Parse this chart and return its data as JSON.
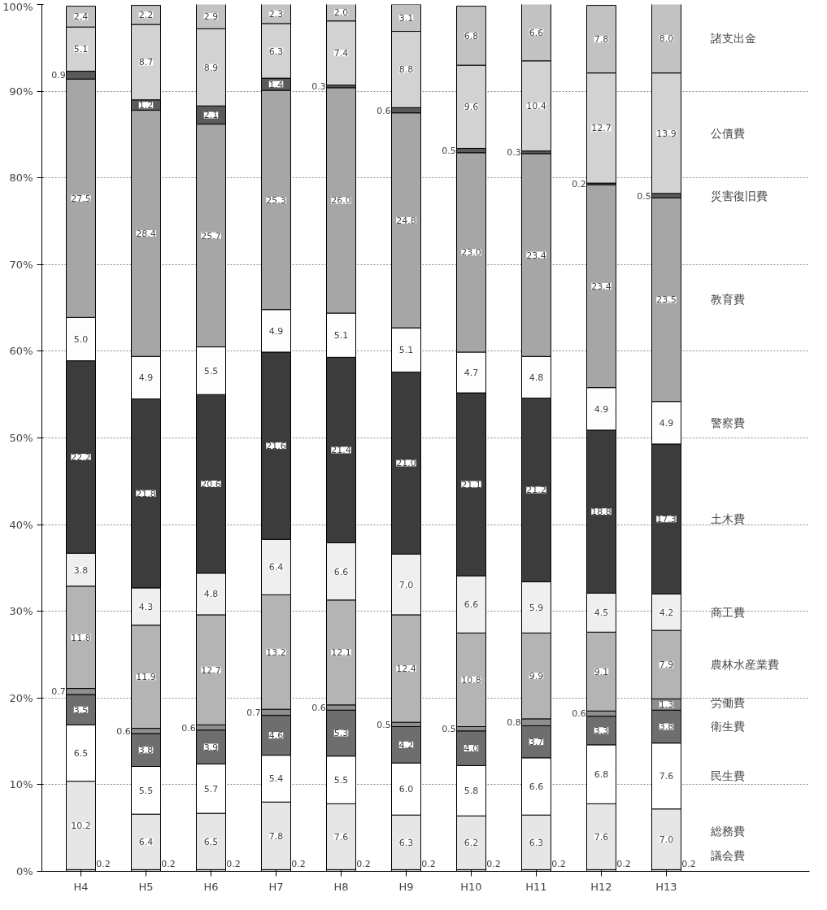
{
  "chart_data": {
    "type": "bar",
    "stacked": true,
    "grid": "y",
    "legend": "right",
    "categories": [
      "H4",
      "H5",
      "H6",
      "H7",
      "H8",
      "H9",
      "H10",
      "H11",
      "H12",
      "H13"
    ],
    "ylim": [
      0,
      100
    ],
    "yticks": [
      {
        "value": 0,
        "label": "0%"
      },
      {
        "value": 10,
        "label": "10%"
      },
      {
        "value": 20,
        "label": "20%"
      },
      {
        "value": 30,
        "label": "30%"
      },
      {
        "value": 40,
        "label": "40%"
      },
      {
        "value": 50,
        "label": "50%"
      },
      {
        "value": 60,
        "label": "60%"
      },
      {
        "value": 70,
        "label": "70%"
      },
      {
        "value": 80,
        "label": "80%"
      },
      {
        "value": 90,
        "label": "90%"
      },
      {
        "value": 100,
        "label": "100%"
      }
    ],
    "series": [
      {
        "name": "議会費",
        "color": "#cccccc",
        "values": [
          0.2,
          0.2,
          0.2,
          0.2,
          0.2,
          0.2,
          0.2,
          0.2,
          0.2,
          0.2
        ],
        "value_labels": [
          "0.2",
          "0.2",
          "0.2",
          "0.2",
          "0.2",
          "0.2",
          "0.2",
          "0.2",
          "0.2",
          "0.2"
        ]
      },
      {
        "name": "総務費",
        "color": "#e6e6e6",
        "values": [
          10.2,
          6.4,
          6.5,
          7.8,
          7.6,
          6.3,
          6.2,
          6.3,
          7.6,
          7.0
        ],
        "value_labels": [
          "10.2",
          "6.4",
          "6.5",
          "7.8",
          "7.6",
          "6.3",
          "6.2",
          "6.3",
          "7.6",
          "7.0"
        ]
      },
      {
        "name": "民生費",
        "color": "#ffffff",
        "values": [
          6.5,
          5.5,
          5.7,
          5.4,
          5.5,
          6.0,
          5.8,
          6.6,
          6.8,
          7.6
        ],
        "value_labels": [
          "6.5",
          "5.5",
          "5.7",
          "5.4",
          "5.5",
          "6.0",
          "5.8",
          "6.6",
          "6.8",
          "7.6"
        ]
      },
      {
        "name": "衛生費",
        "color": "#6e6e6e",
        "values": [
          3.5,
          3.8,
          3.9,
          4.6,
          5.3,
          4.2,
          4.0,
          3.7,
          3.3,
          3.8
        ],
        "value_labels": [
          "3.5",
          "3.8",
          "3.9",
          "4.6",
          "5.3",
          "4.2",
          "4.0",
          "3.7",
          "3.3",
          "3.8"
        ]
      },
      {
        "name": "労働費",
        "color": "#8f8f8f",
        "values": [
          0.7,
          0.6,
          0.6,
          0.7,
          0.6,
          0.5,
          0.5,
          0.8,
          0.6,
          1.3
        ],
        "value_labels": [
          "0.7",
          "0.6",
          "0.6",
          "0.7",
          "0.6",
          "0.5",
          "0.5",
          "0.8",
          "0.6",
          "1.3"
        ]
      },
      {
        "name": "農林水産業費",
        "color": "#b4b4b4",
        "values": [
          11.8,
          11.9,
          12.7,
          13.2,
          12.1,
          12.4,
          10.8,
          9.9,
          9.1,
          7.9
        ],
        "value_labels": [
          "11.8",
          "11.9",
          "12.7",
          "13.2",
          "12.1",
          "12.4",
          "10.8",
          "9.9",
          "9.1",
          "7.9"
        ]
      },
      {
        "name": "商工費",
        "color": "#efefef",
        "values": [
          3.8,
          4.3,
          4.8,
          6.4,
          6.6,
          7.0,
          6.6,
          5.9,
          4.5,
          4.2
        ],
        "value_labels": [
          "3.8",
          "4.3",
          "4.8",
          "6.4",
          "6.6",
          "7.0",
          "6.6",
          "5.9",
          "4.5",
          "4.2"
        ]
      },
      {
        "name": "土木費",
        "color": "#3c3c3c",
        "values": [
          22.2,
          21.8,
          20.6,
          21.6,
          21.4,
          21.0,
          21.1,
          21.2,
          18.8,
          17.3
        ],
        "value_labels": [
          "22.2",
          "21.8",
          "20.6",
          "21.6",
          "21.4",
          "21.0",
          "21.1",
          "21.2",
          "18.8",
          "17.3"
        ]
      },
      {
        "name": "警察費",
        "color": "#fdfdfd",
        "values": [
          5.0,
          4.9,
          5.5,
          4.9,
          5.1,
          5.1,
          4.7,
          4.8,
          4.9,
          4.9
        ],
        "value_labels": [
          "5.0",
          "4.9",
          "5.5",
          "4.9",
          "5.1",
          "5.1",
          "4.7",
          "4.8",
          "4.9",
          "4.9"
        ]
      },
      {
        "name": "教育費",
        "color": "#a6a6a6",
        "values": [
          27.5,
          28.4,
          25.7,
          25.3,
          26.0,
          24.8,
          23.0,
          23.4,
          23.4,
          23.5
        ],
        "value_labels": [
          "27.5",
          "28.4",
          "25.7",
          "25.3",
          "26.0",
          "24.8",
          "23.0",
          "23.4",
          "23.4",
          "23.5"
        ]
      },
      {
        "name": "災害復旧費",
        "color": "#5a5a5a",
        "values": [
          0.9,
          1.2,
          2.1,
          1.4,
          0.3,
          0.6,
          0.5,
          0.3,
          0.2,
          0.5
        ],
        "value_labels": [
          "0.9",
          "1.2",
          "2.1",
          "1.4",
          "0.3",
          "0.6",
          "0.5",
          "0.3",
          "0.2",
          "0.5"
        ]
      },
      {
        "name": "公債費",
        "color": "#d2d2d2",
        "values": [
          5.1,
          8.7,
          8.9,
          6.3,
          7.4,
          8.8,
          9.6,
          10.4,
          12.7,
          13.9
        ],
        "value_labels": [
          "5.1",
          "8.7",
          "8.9",
          "6.3",
          "7.4",
          "8.8",
          "9.6",
          "10.4",
          "12.7",
          "13.9"
        ]
      },
      {
        "name": "諸支出金",
        "color": "#c2c2c2",
        "values": [
          2.4,
          2.2,
          2.9,
          2.3,
          2.0,
          3.1,
          6.8,
          6.6,
          7.8,
          8.0
        ],
        "value_labels": [
          "2.4",
          "2.2",
          "2.9",
          "2.3",
          "2.0",
          "3.1",
          "6.8",
          "6.6",
          "7.8",
          "8.0"
        ]
      }
    ]
  }
}
